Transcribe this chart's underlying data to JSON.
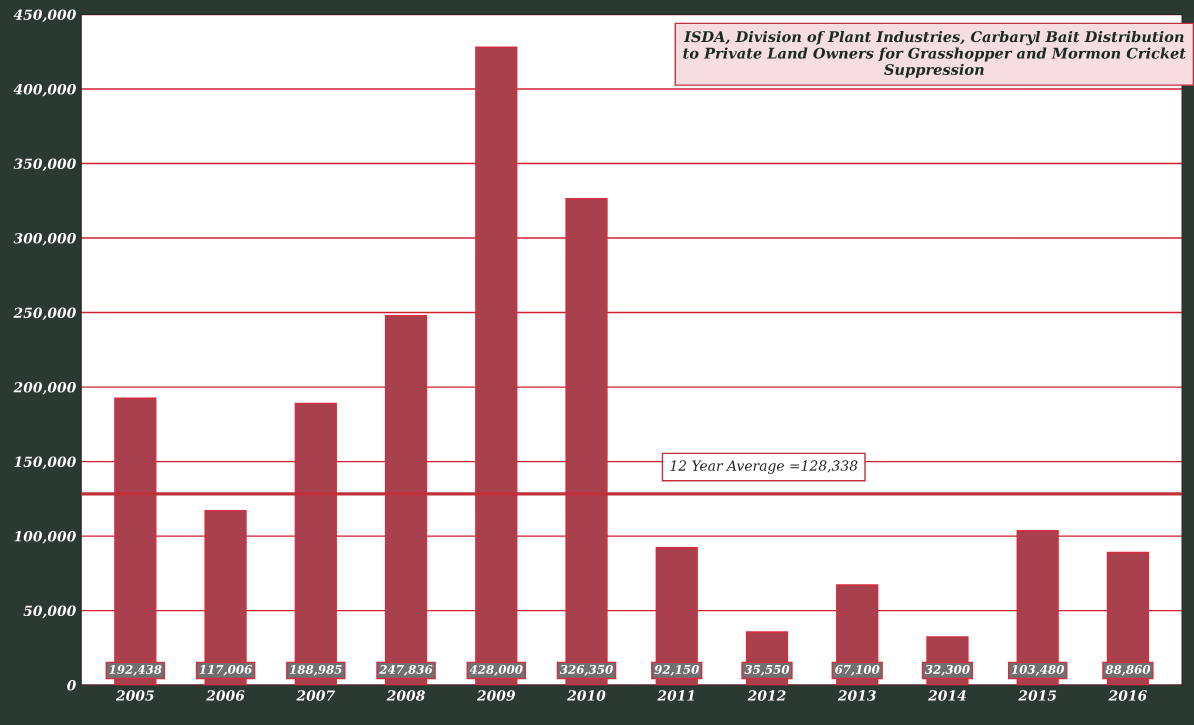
{
  "chart_data": {
    "type": "bar",
    "title": "ISDA, Division of Plant Industries, Carbaryl Bait Distribution to Private Land Owners for Grasshopper and Mormon Cricket Suppression",
    "categories": [
      "2005",
      "2006",
      "2007",
      "2008",
      "2009",
      "2010",
      "2011",
      "2012",
      "2013",
      "2014",
      "2015",
      "2016"
    ],
    "values": [
      192438,
      117006,
      188985,
      247836,
      428000,
      326350,
      92150,
      35550,
      67100,
      32300,
      103480,
      88860
    ],
    "value_labels": [
      "192,438",
      "117,006",
      "188,985",
      "247,836",
      "428,000",
      "326,350",
      "92,150",
      "35,550",
      "67,100",
      "32,300",
      "103,480",
      "88,860"
    ],
    "color": "#a8404e",
    "ylim": [
      0,
      450000
    ],
    "yticks": [
      0,
      {
        "value": 50000,
        "label": "50,000"
      },
      {
        "value": 100000,
        "label": "100,000"
      },
      {
        "value": 150000,
        "label": "150,000"
      },
      {
        "value": 200000,
        "label": "200,000"
      },
      {
        "value": 250000,
        "label": "250,000"
      },
      {
        "value": 300000,
        "label": "300,000"
      },
      {
        "value": 350000,
        "label": "350,000"
      },
      {
        "value": 400000,
        "label": "400,000"
      },
      {
        "value": 450000,
        "label": "450,000"
      }
    ],
    "grid": "y",
    "ref_lines": [
      {
        "axis": "y",
        "value": 128338,
        "label": "12 Year Average =128,338",
        "color": "#c0303a"
      }
    ]
  }
}
